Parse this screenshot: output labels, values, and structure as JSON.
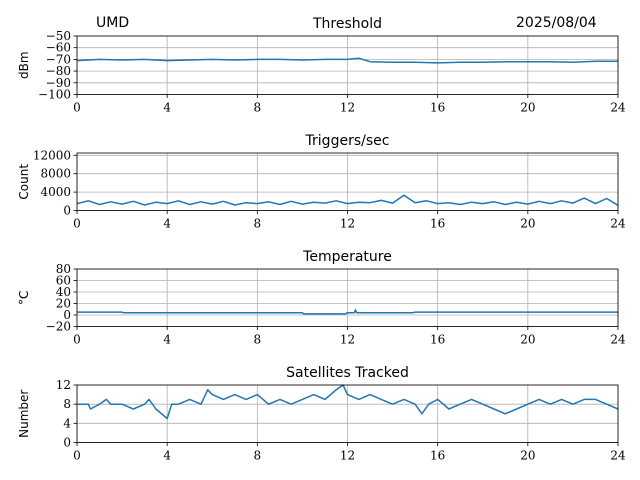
{
  "header": {
    "site": "UMD",
    "date": "2025/08/04"
  },
  "colors": {
    "series": "#1f77b4",
    "grid": "#b0b0b0"
  },
  "chart_data": [
    {
      "type": "line",
      "title": "Threshold",
      "ylabel": "dBm",
      "xlim": [
        0,
        24
      ],
      "ylim": [
        -100,
        -50
      ],
      "xticks": [
        0,
        4,
        8,
        12,
        16,
        20,
        24
      ],
      "yticks": [
        -100,
        -90,
        -80,
        -70,
        -60,
        -50
      ],
      "ytick_labels": [
        "−100",
        "−90",
        "−80",
        "−70",
        "−60",
        "−50"
      ],
      "grid": true,
      "series": [
        {
          "x": [
            0,
            1,
            2,
            3,
            4,
            5,
            6,
            7,
            8,
            9,
            10,
            11,
            12,
            12.5,
            13,
            14,
            15,
            16,
            17,
            18,
            19,
            20,
            21,
            22,
            23,
            24
          ],
          "y": [
            -71,
            -70,
            -70.5,
            -70,
            -71,
            -70.5,
            -70,
            -70.5,
            -70,
            -70,
            -70.5,
            -70,
            -70,
            -69,
            -72,
            -72.5,
            -72.5,
            -73,
            -72.5,
            -72.5,
            -72,
            -72,
            -72,
            -72.5,
            -71.5,
            -71.5
          ]
        }
      ]
    },
    {
      "type": "line",
      "title": "Triggers/sec",
      "ylabel": "Count",
      "xlim": [
        0,
        24
      ],
      "ylim": [
        0,
        12500
      ],
      "xticks": [
        0,
        4,
        8,
        12,
        16,
        20,
        24
      ],
      "yticks": [
        0,
        4000,
        8000,
        12000
      ],
      "ytick_labels": [
        "0",
        "4000",
        "8000",
        "12000"
      ],
      "grid": true,
      "series": [
        {
          "x": [
            0,
            0.5,
            1,
            1.5,
            2,
            2.5,
            3,
            3.5,
            4,
            4.5,
            5,
            5.5,
            6,
            6.5,
            7,
            7.5,
            8,
            8.5,
            9,
            9.5,
            10,
            10.5,
            11,
            11.5,
            12,
            12.5,
            13,
            13.5,
            14,
            14.5,
            15,
            15.5,
            16,
            16.5,
            17,
            17.5,
            18,
            18.5,
            19,
            19.5,
            20,
            20.5,
            21,
            21.5,
            22,
            22.5,
            23,
            23.5,
            24
          ],
          "y": [
            1500,
            2100,
            1300,
            1900,
            1400,
            2000,
            1200,
            1800,
            1500,
            2100,
            1300,
            1900,
            1400,
            2000,
            1200,
            1700,
            1500,
            1900,
            1300,
            2000,
            1400,
            1800,
            1600,
            2100,
            1500,
            1800,
            1700,
            2200,
            1600,
            3300,
            1700,
            2100,
            1500,
            1700,
            1300,
            1800,
            1500,
            1900,
            1300,
            1800,
            1400,
            2000,
            1500,
            2100,
            1600,
            2700,
            1500,
            2600,
            1100
          ]
        }
      ]
    },
    {
      "type": "line",
      "title": "Temperature",
      "ylabel": "°C",
      "xlim": [
        0,
        24
      ],
      "ylim": [
        -20,
        80
      ],
      "xticks": [
        0,
        4,
        8,
        12,
        16,
        20,
        24
      ],
      "yticks": [
        -20,
        0,
        20,
        40,
        60,
        80
      ],
      "ytick_labels": [
        "−20",
        "0",
        "20",
        "40",
        "60",
        "80"
      ],
      "grid": true,
      "series": [
        {
          "x": [
            0,
            2,
            2.05,
            10,
            10.05,
            11.9,
            12,
            12.3,
            12.35,
            12.4,
            12.45,
            13,
            14.9,
            15,
            24
          ],
          "y": [
            5,
            5,
            4,
            4,
            2,
            2,
            4,
            4,
            9,
            4,
            4,
            4,
            4,
            5,
            5
          ]
        }
      ]
    },
    {
      "type": "line",
      "title": "Satellites Tracked",
      "ylabel": "Number",
      "xlim": [
        0,
        24
      ],
      "ylim": [
        0,
        12
      ],
      "xticks": [
        0,
        4,
        8,
        12,
        16,
        20,
        24
      ],
      "yticks": [
        0,
        4,
        8,
        12
      ],
      "ytick_labels": [
        "0",
        "4",
        "8",
        "12"
      ],
      "grid": true,
      "series": [
        {
          "x": [
            0,
            0.5,
            0.6,
            1,
            1.3,
            1.5,
            2,
            2.5,
            3,
            3.2,
            3.5,
            4,
            4.2,
            4.5,
            5,
            5.5,
            5.8,
            6,
            6.5,
            7,
            7.5,
            8,
            8.5,
            9,
            9.5,
            10,
            10.5,
            11,
            11.5,
            11.8,
            12,
            12.5,
            13,
            13.5,
            14,
            14.5,
            15,
            15.3,
            15.6,
            16,
            16.5,
            17,
            17.5,
            18,
            18.5,
            19,
            19.5,
            20,
            20.5,
            21,
            21.5,
            22,
            22.5,
            23,
            23.5,
            24
          ],
          "y": [
            8,
            8,
            7,
            8,
            9,
            8,
            8,
            7,
            8,
            9,
            7,
            5,
            8,
            8,
            9,
            8,
            11,
            10,
            9,
            10,
            9,
            10,
            8,
            9,
            8,
            9,
            10,
            9,
            11,
            12,
            10,
            9,
            10,
            9,
            8,
            9,
            8,
            6,
            8,
            9,
            7,
            8,
            9,
            8,
            7,
            6,
            7,
            8,
            9,
            8,
            9,
            8,
            9,
            9,
            8,
            7
          ]
        }
      ]
    }
  ]
}
